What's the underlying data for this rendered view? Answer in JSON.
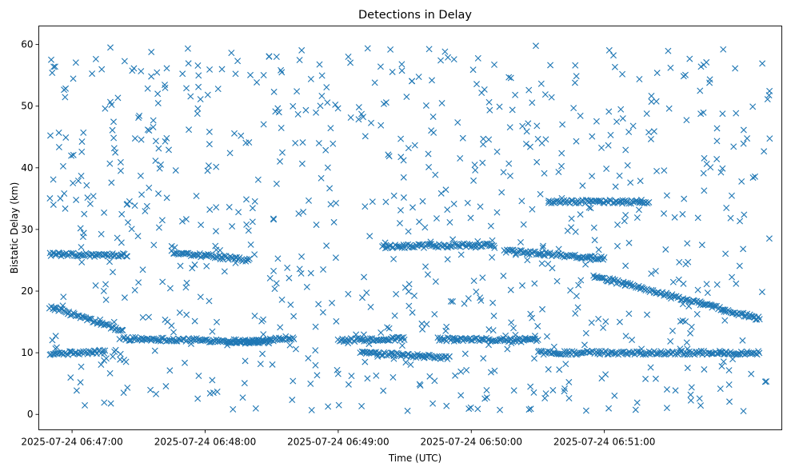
{
  "chart_data": {
    "type": "scatter",
    "title": "Detections in Delay",
    "xlabel": "Time (UTC)",
    "ylabel": "Bistatic Delay (km)",
    "x_tick_labels": [
      "2025-07-24 06:47:00",
      "2025-07-24 06:48:00",
      "2025-07-24 06:49:00",
      "2025-07-24 06:50:00",
      "2025-07-24 06:51:00"
    ],
    "y_ticks": [
      0,
      10,
      20,
      30,
      40,
      50,
      60
    ],
    "xlim": [
      "2025-07-24 06:46:45",
      "2025-07-24 06:52:20"
    ],
    "ylim": [
      -2.5,
      63
    ],
    "marker": "x",
    "color": "#1f77b4",
    "grid": false,
    "series": [
      {
        "values_description_omitted": false,
        "tracks": [
          {
            "start": [
              "2025-07-24 06:46:50",
              17.5
            ],
            "end": [
              "2025-07-24 06:47:23",
              13.5
            ]
          },
          {
            "start": [
              "2025-07-24 06:47:23",
              12.3
            ],
            "end": [
              "2025-07-24 06:48:30",
              11.8
            ]
          },
          {
            "start": [
              "2025-07-24 06:48:10",
              11.5
            ],
            "end": [
              "2025-07-24 06:48:40",
              12.5
            ]
          },
          {
            "start": [
              "2025-07-24 06:49:00",
              12.0
            ],
            "end": [
              "2025-07-24 06:49:30",
              12.3
            ]
          },
          {
            "start": [
              "2025-07-24 06:49:10",
              10.0
            ],
            "end": [
              "2025-07-24 06:49:50",
              9.2
            ]
          },
          {
            "start": [
              "2025-07-24 06:49:45",
              12.2
            ],
            "end": [
              "2025-07-24 06:50:30",
              12.0
            ]
          },
          {
            "start": [
              "2025-07-24 06:50:30",
              10.0
            ],
            "end": [
              "2025-07-24 06:52:10",
              10.0
            ]
          },
          {
            "start": [
              "2025-07-24 06:46:50",
              9.8
            ],
            "end": [
              "2025-07-24 06:47:15",
              10.2
            ]
          },
          {
            "start": [
              "2025-07-24 06:46:50",
              26.0
            ],
            "end": [
              "2025-07-24 06:47:25",
              25.8
            ]
          },
          {
            "start": [
              "2025-07-24 06:47:45",
              26.3
            ],
            "end": [
              "2025-07-24 06:48:20",
              25.0
            ]
          },
          {
            "start": [
              "2025-07-24 06:49:20",
              27.2
            ],
            "end": [
              "2025-07-24 06:50:10",
              27.5
            ]
          },
          {
            "start": [
              "2025-07-24 06:50:15",
              26.5
            ],
            "end": [
              "2025-07-24 06:51:00",
              25.3
            ]
          },
          {
            "start": [
              "2025-07-24 06:50:55",
              22.5
            ],
            "end": [
              "2025-07-24 06:52:10",
              15.5
            ]
          },
          {
            "start": [
              "2025-07-24 06:50:35",
              34.5
            ],
            "end": [
              "2025-07-24 06:51:20",
              34.5
            ]
          }
        ]
      }
    ],
    "random_seed": 12345,
    "noise_point_count": 820
  }
}
